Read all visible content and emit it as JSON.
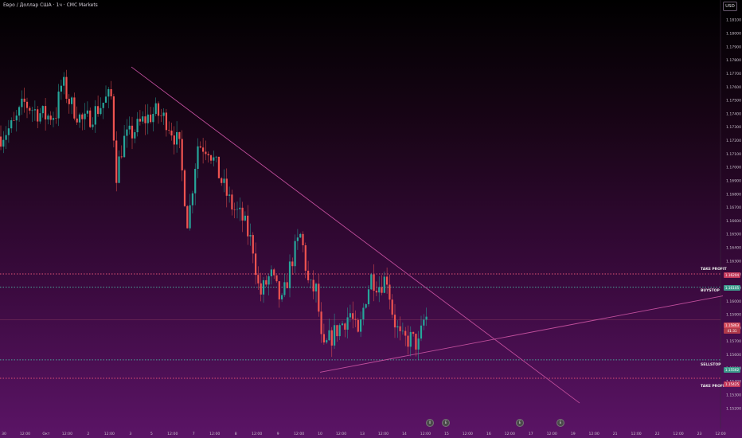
{
  "header": {
    "title": "Евро / Доллар США · 1ч · CMC Markets",
    "currency": "USD"
  },
  "colors": {
    "up": "#26a69a",
    "down": "#ef5350",
    "trendline": "#c04e9c",
    "take_profit": "#e05274",
    "entry": "#4aa89a"
  },
  "chart_data": {
    "type": "candlestick",
    "title": "Евро / Доллар США · 1ч · CMC Markets",
    "ylim": [
      1.1505,
      1.1825
    ],
    "y_ticks": [
      1.152,
      1.153,
      1.154,
      1.155,
      1.156,
      1.157,
      1.158,
      1.159,
      1.16,
      1.161,
      1.162,
      1.163,
      1.164,
      1.165,
      1.166,
      1.167,
      1.168,
      1.169,
      1.17,
      1.171,
      1.172,
      1.173,
      1.174,
      1.175,
      1.176,
      1.177,
      1.178,
      1.179,
      1.18,
      1.181
    ],
    "x_ticks": [
      "30",
      "12:00",
      "Окт",
      "12:00",
      "2",
      "12:00",
      "3",
      "5",
      "12:00",
      "7",
      "12:00",
      "8",
      "12:00",
      "9",
      "12:00",
      "10",
      "12:00",
      "13",
      "12:00",
      "14",
      "12:00",
      "15",
      "12:00",
      "16",
      "12:00",
      "17",
      "12:00",
      "19",
      "12:00",
      "21",
      "12:00",
      "22",
      "12:00",
      "23",
      "12:00"
    ],
    "price_path": [
      [
        0,
        1.1723
      ],
      [
        18,
        1.1732
      ],
      [
        30,
        1.1748
      ],
      [
        45,
        1.1742
      ],
      [
        58,
        1.1738
      ],
      [
        70,
        1.174
      ],
      [
        78,
        1.1764
      ],
      [
        88,
        1.1748
      ],
      [
        105,
        1.1733
      ],
      [
        120,
        1.1742
      ],
      [
        135,
        1.1752
      ],
      [
        140,
        1.1752
      ],
      [
        146,
        1.1695
      ],
      [
        155,
        1.172
      ],
      [
        165,
        1.1725
      ],
      [
        180,
        1.1735
      ],
      [
        195,
        1.1741
      ],
      [
        210,
        1.1735
      ],
      [
        225,
        1.1716
      ],
      [
        236,
        1.1657
      ],
      [
        248,
        1.1717
      ],
      [
        262,
        1.1715
      ],
      [
        278,
        1.169
      ],
      [
        290,
        1.1672
      ],
      [
        305,
        1.1661
      ],
      [
        318,
        1.164
      ],
      [
        326,
        1.1604
      ],
      [
        340,
        1.162
      ],
      [
        354,
        1.1598
      ],
      [
        366,
        1.163
      ],
      [
        378,
        1.165
      ],
      [
        388,
        1.161
      ],
      [
        398,
        1.1608
      ],
      [
        405,
        1.156
      ],
      [
        412,
        1.157
      ],
      [
        425,
        1.158
      ],
      [
        440,
        1.1591
      ],
      [
        450,
        1.1572
      ],
      [
        458,
        1.16
      ],
      [
        466,
        1.1618
      ],
      [
        476,
        1.1612
      ],
      [
        486,
        1.1618
      ],
      [
        494,
        1.1588
      ],
      [
        504,
        1.157
      ],
      [
        516,
        1.1572
      ],
      [
        526,
        1.1567
      ],
      [
        532,
        1.1585
      ],
      [
        537,
        1.1589
      ]
    ],
    "trendlines": [
      {
        "from": [
          165,
          1.1775
        ],
        "to": [
          728,
          1.1524
        ]
      },
      {
        "from": [
          402,
          1.1547
        ],
        "to": [
          908,
          1.1604
        ]
      }
    ],
    "levels": [
      {
        "label": "TAKE PROFIT",
        "price": 1.16204,
        "style": "dotted"
      },
      {
        "label": "BUYSTOP",
        "price": 1.16105,
        "style": "dotted"
      },
      {
        "label": "SELLSTOP",
        "price": 1.15562,
        "style": "dotted"
      },
      {
        "label": "TAKE PROFIT",
        "price": 1.15425,
        "style": "dotted"
      }
    ],
    "current_price": 1.15863
  },
  "price_axis": {
    "tp_upper_badge": "1.16204",
    "buystop_badge": "1.16105",
    "current_badge_price": "1.15863",
    "current_badge_timer": "41:31",
    "sellstop_badge": "1.15562",
    "tp_lower_badge": "1.15425"
  },
  "events": [
    "0",
    "E",
    "E",
    "E"
  ]
}
